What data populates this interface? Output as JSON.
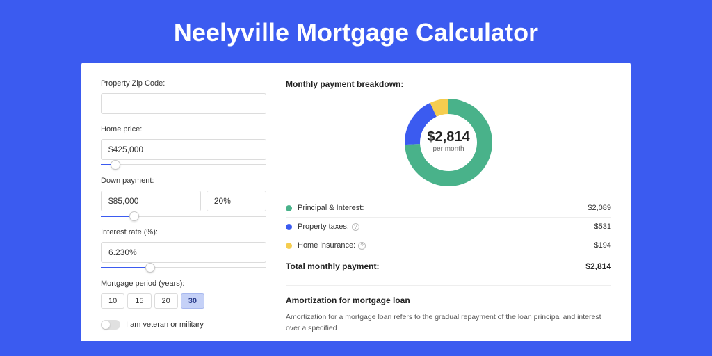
{
  "title": "Neelyville Mortgage Calculator",
  "colors": {
    "page_bg": "#3b5bf0",
    "card_bg": "#ffffff",
    "accent": "#3b5bf0",
    "text": "#333333",
    "muted": "#666666"
  },
  "form": {
    "zip": {
      "label": "Property Zip Code:",
      "value": ""
    },
    "home_price": {
      "label": "Home price:",
      "value": "$425,000",
      "slider_pct": 9
    },
    "down_payment": {
      "label": "Down payment:",
      "value": "$85,000",
      "pct_value": "20%",
      "slider_pct": 20
    },
    "interest_rate": {
      "label": "Interest rate (%):",
      "value": "6.230%",
      "slider_pct": 30
    },
    "mortgage_period": {
      "label": "Mortgage period (years):",
      "options": [
        "10",
        "15",
        "20",
        "30"
      ],
      "active": "30"
    },
    "veteran": {
      "label": "I am veteran or military",
      "checked": false
    }
  },
  "breakdown": {
    "title": "Monthly payment breakdown:",
    "donut": {
      "center_value": "$2,814",
      "center_sub": "per month",
      "slices": [
        {
          "label": "Principal & Interest:",
          "value": "$2,089",
          "amount": 2089,
          "pct": 74.2,
          "color": "#49b28a"
        },
        {
          "label": "Property taxes:",
          "value": "$531",
          "amount": 531,
          "pct": 18.9,
          "color": "#3b5bf0",
          "info": true
        },
        {
          "label": "Home insurance:",
          "value": "$194",
          "amount": 194,
          "pct": 6.9,
          "color": "#f5cd4f",
          "info": true
        }
      ],
      "size": 130,
      "thickness": 22,
      "bg": "#ffffff"
    },
    "total_label": "Total monthly payment:",
    "total_value": "$2,814"
  },
  "amortization": {
    "title": "Amortization for mortgage loan",
    "text": "Amortization for a mortgage loan refers to the gradual repayment of the loan principal and interest over a specified"
  }
}
